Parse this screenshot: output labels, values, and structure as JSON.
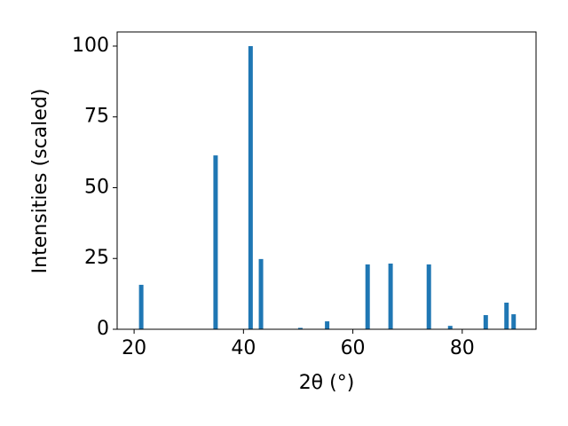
{
  "chart_data": {
    "type": "bar",
    "x": [
      21.3,
      34.9,
      41.3,
      43.2,
      50.4,
      55.3,
      62.7,
      66.9,
      73.9,
      77.8,
      84.3,
      88.1,
      89.4
    ],
    "values": [
      15.7,
      61.4,
      100,
      24.8,
      0.5,
      2.8,
      22.9,
      23.2,
      22.9,
      1.2,
      5.0,
      9.4,
      5.3
    ],
    "color": "#1f77b4",
    "xlabel": "2θ (°)",
    "ylabel": "Intensities (scaled)",
    "xlim": [
      16.9,
      93.5
    ],
    "xticks": [
      20,
      40,
      60,
      80
    ],
    "ylim": [
      0,
      105
    ],
    "yticks": [
      0,
      25,
      50,
      75,
      100
    ]
  }
}
